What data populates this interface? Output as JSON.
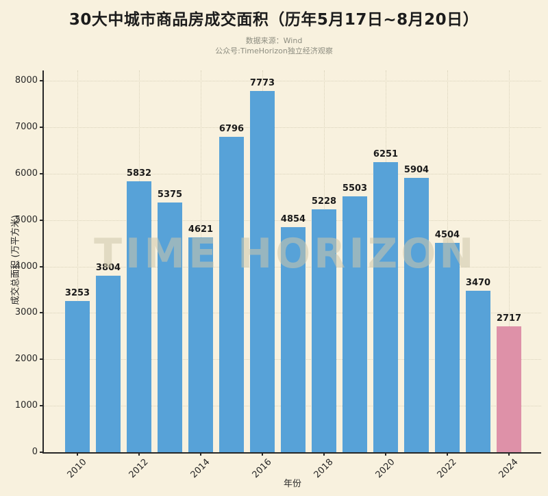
{
  "title": "30大中城市商品房成交面积（历年5月17日~8月20日）",
  "subtitle": {
    "source": "数据来源：Wind",
    "account": "公众号:TimeHorizon独立经济观察"
  },
  "watermark": "TIME HORIZON",
  "chart_data": {
    "type": "bar",
    "title": "30大中城市商品房成交面积（历年5月17日~8月20日）",
    "categories": [
      "2010",
      "2011",
      "2012",
      "2013",
      "2014",
      "2015",
      "2016",
      "2017",
      "2018",
      "2019",
      "2020",
      "2021",
      "2022",
      "2023",
      "2024"
    ],
    "values": [
      3253,
      3804,
      5832,
      5375,
      4621,
      6796,
      7773,
      4854,
      5228,
      5503,
      6251,
      5904,
      4504,
      3470,
      2717
    ],
    "xlabel": "年份",
    "ylabel": "成交总面积 (万平方米)",
    "ylim": [
      0,
      8000
    ],
    "ytick_interval": 1000,
    "yticks": [
      0,
      1000,
      2000,
      3000,
      4000,
      5000,
      6000,
      7000,
      8000
    ],
    "xtick_labels": [
      "2010",
      "2012",
      "2014",
      "2016",
      "2018",
      "2020",
      "2022",
      "2024"
    ],
    "grid": true,
    "grid_style": "dotted",
    "legend": "none",
    "bar_color": "#57a2d8",
    "highlight_color": "#de91a8",
    "highlight_index": 14,
    "background_color": "#f8f1de",
    "axis_color": "#262626"
  }
}
